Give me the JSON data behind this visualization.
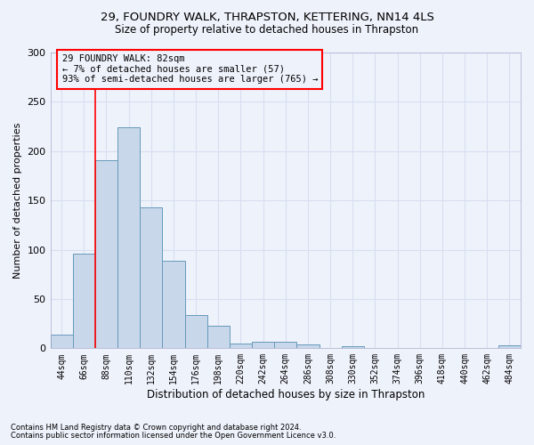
{
  "title": "29, FOUNDRY WALK, THRAPSTON, KETTERING, NN14 4LS",
  "subtitle": "Size of property relative to detached houses in Thrapston",
  "xlabel": "Distribution of detached houses by size in Thrapston",
  "ylabel": "Number of detached properties",
  "bar_color": "#c8d8ea",
  "bar_edge_color": "#6699bb",
  "categories": [
    "44sqm",
    "66sqm",
    "88sqm",
    "110sqm",
    "132sqm",
    "154sqm",
    "176sqm",
    "198sqm",
    "220sqm",
    "242sqm",
    "264sqm",
    "286sqm",
    "308sqm",
    "330sqm",
    "352sqm",
    "374sqm",
    "396sqm",
    "418sqm",
    "440sqm",
    "462sqm",
    "484sqm"
  ],
  "values": [
    14,
    96,
    191,
    224,
    143,
    89,
    34,
    23,
    5,
    7,
    7,
    4,
    0,
    2,
    0,
    0,
    0,
    0,
    0,
    0,
    3
  ],
  "ylim": [
    0,
    300
  ],
  "yticks": [
    0,
    50,
    100,
    150,
    200,
    250,
    300
  ],
  "marker_label_line1": "29 FOUNDRY WALK: 82sqm",
  "marker_label_line2": "← 7% of detached houses are smaller (57)",
  "marker_label_line3": "93% of semi-detached houses are larger (765) →",
  "footnote1": "Contains HM Land Registry data © Crown copyright and database right 2024.",
  "footnote2": "Contains public sector information licensed under the Open Government Licence v3.0.",
  "grid_color": "#d8dff0",
  "background_color": "#eef2fb"
}
